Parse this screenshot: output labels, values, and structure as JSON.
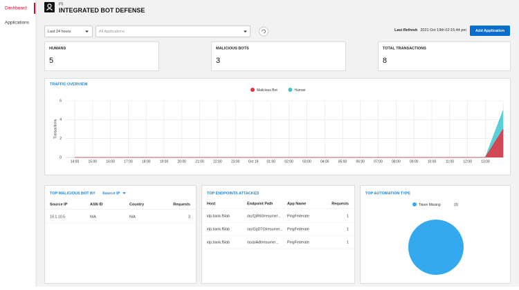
{
  "nav": [
    "Dashboard",
    "Applications"
  ],
  "header": {
    "brand": "F5",
    "title": "INTEGRATED BOT DEFENSE"
  },
  "controls": {
    "time_range": "Last 24 hours",
    "application": "All Applications",
    "last_refresh_label": "Last Refresh",
    "last_refresh": "2021 Oct 19th 02:15:44 pm",
    "add_button": "Add Application"
  },
  "stats": [
    {
      "label": "HUMANS",
      "value": 5
    },
    {
      "label": "MALICIOUS BOTS",
      "value": 3
    },
    {
      "label": "TOTAL TRANSACTIONS",
      "value": 8
    }
  ],
  "chart_data": [
    {
      "type": "area",
      "title": "TRAFFIC OVERVIEW",
      "y_label": "Transactions",
      "categories": [
        "14:00",
        "15:00",
        "16:00",
        "17:00",
        "18:00",
        "19:00",
        "20:00",
        "21:00",
        "22:00",
        "23:00",
        "Oct 19",
        "01:00",
        "02:00",
        "03:00",
        "04:00",
        "05:00",
        "06:00",
        "07:00",
        "08:00",
        "09:00",
        "10:00",
        "11:00",
        "12:00",
        "13:00",
        null
      ],
      "series": [
        {
          "name": "Human",
          "color": "#3cc7cf",
          "values": [
            0,
            0,
            0,
            0,
            0,
            0,
            0,
            0,
            0,
            0,
            0,
            0,
            0,
            0,
            0,
            0,
            0,
            0,
            0,
            0,
            0,
            0,
            0,
            0,
            5
          ]
        },
        {
          "name": "Malicious Bot",
          "color": "#e8303f",
          "values": [
            0,
            0,
            0,
            0,
            0,
            0,
            0,
            0,
            0,
            0,
            0,
            0,
            0,
            0,
            0,
            0,
            0,
            0,
            0,
            0,
            0,
            0,
            0,
            0,
            3
          ]
        }
      ],
      "ylim": [
        0,
        6
      ],
      "yticks": [
        0,
        2,
        4,
        6
      ],
      "grid": true
    },
    {
      "type": "pie",
      "title": "TOP AUTOMATION TYPE",
      "categories": [
        "Token Missing"
      ],
      "values": [
        3
      ],
      "value_labels": [
        "(3)"
      ],
      "colors": [
        "#35a9ef"
      ]
    }
  ],
  "tables": [
    {
      "title": "TOP MALICIOUS BOT BY",
      "dropdown": "Source IP",
      "columns": [
        "Source IP",
        "ASN ID",
        "Country",
        "Requests"
      ],
      "rows": [
        [
          "10.1.10.5",
          "N/A",
          "N/A",
          3
        ]
      ]
    },
    {
      "title": "TOP ENDPOINTS ATTACKED",
      "columns": [
        "Host",
        "Endpoint Path",
        "App Name",
        "Requests"
      ],
      "rows": [
        [
          "idp.bank.f5lab",
          "/as/QjR60/resume/...",
          "PingFederate",
          1
        ],
        [
          "idp.bank.f5lab",
          "/as/GgDTO/resume/...",
          "PingFederate",
          1
        ],
        [
          "idp.bank.f5lab",
          "/as/piAdt/resume/...",
          "PingFederate",
          1
        ]
      ]
    }
  ]
}
